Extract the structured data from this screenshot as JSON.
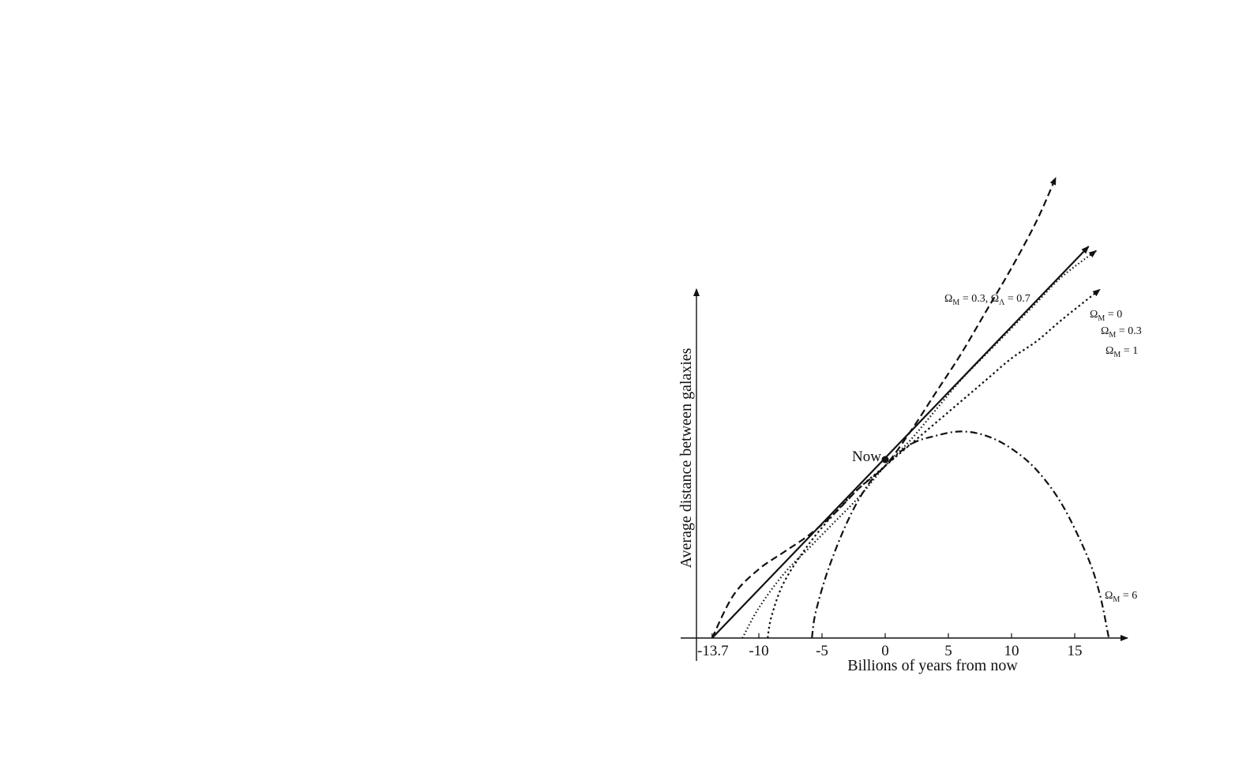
{
  "chart_data": {
    "type": "line",
    "xlabel": "Billions of years from now",
    "ylabel": "Average distance between galaxies",
    "xlim": [
      -15,
      20
    ],
    "ylim": [
      0,
      1
    ],
    "x_ticks": [
      {
        "value": -13.7,
        "label": "-13.7"
      },
      {
        "value": -10,
        "label": "-10"
      },
      {
        "value": -5,
        "label": "-5"
      },
      {
        "value": 0,
        "label": "0"
      },
      {
        "value": 5,
        "label": "5"
      },
      {
        "value": 10,
        "label": "10"
      },
      {
        "value": 15,
        "label": "15"
      }
    ],
    "grid": false,
    "annotation": {
      "label": "Now",
      "x": 0,
      "y": 0.4
    },
    "series": [
      {
        "name_main": "Ω",
        "name_sub": "M",
        "name_rest": " = 0.3, ",
        "name_main2": "Ω",
        "name_sub2": "Λ",
        "name_rest2": " = 0.7",
        "style": "dashed",
        "x": [
          -13.7,
          -12,
          -10,
          -8,
          -6,
          -4,
          -2,
          0,
          2,
          4,
          6,
          8,
          10,
          12,
          13.5
        ],
        "y": [
          0.0,
          0.1,
          0.16,
          0.2,
          0.24,
          0.29,
          0.35,
          0.4,
          0.48,
          0.57,
          0.66,
          0.76,
          0.86,
          0.97,
          1.07
        ]
      },
      {
        "name_main": "Ω",
        "name_sub": "M",
        "name_rest": " = 0",
        "style": "solid",
        "x": [
          -13.7,
          16.1
        ],
        "y": [
          0.0,
          0.91
        ]
      },
      {
        "name_main": "Ω",
        "name_sub": "M",
        "name_rest": " = 0.3",
        "style": "fine-dotted",
        "x": [
          -11.3,
          -10,
          -8,
          -6,
          -4,
          -2,
          0,
          2,
          4,
          6,
          8,
          10,
          12,
          14,
          16.7
        ],
        "y": [
          0.0,
          0.07,
          0.15,
          0.21,
          0.27,
          0.33,
          0.4,
          0.46,
          0.53,
          0.6,
          0.66,
          0.72,
          0.78,
          0.84,
          0.9
        ]
      },
      {
        "name_main": "Ω",
        "name_sub": "M",
        "name_rest": " = 1",
        "style": "dotted",
        "x": [
          -9.3,
          -9,
          -8,
          -6,
          -4,
          -2,
          0,
          2,
          4,
          6,
          8,
          10,
          12,
          14,
          17
        ],
        "y": [
          0.0,
          0.05,
          0.13,
          0.22,
          0.29,
          0.35,
          0.4,
          0.45,
          0.5,
          0.55,
          0.6,
          0.65,
          0.69,
          0.74,
          0.81
        ]
      },
      {
        "name_main": "Ω",
        "name_sub": "M",
        "name_rest": " = 6",
        "style": "dash-dot",
        "x": [
          -5.8,
          -5.5,
          -4.5,
          -3,
          -1.5,
          0,
          2,
          4,
          6,
          8,
          10,
          12,
          14,
          16,
          17,
          17.7
        ],
        "y": [
          0.0,
          0.06,
          0.16,
          0.27,
          0.35,
          0.4,
          0.45,
          0.47,
          0.48,
          0.47,
          0.44,
          0.39,
          0.31,
          0.19,
          0.1,
          0.0
        ]
      }
    ]
  }
}
